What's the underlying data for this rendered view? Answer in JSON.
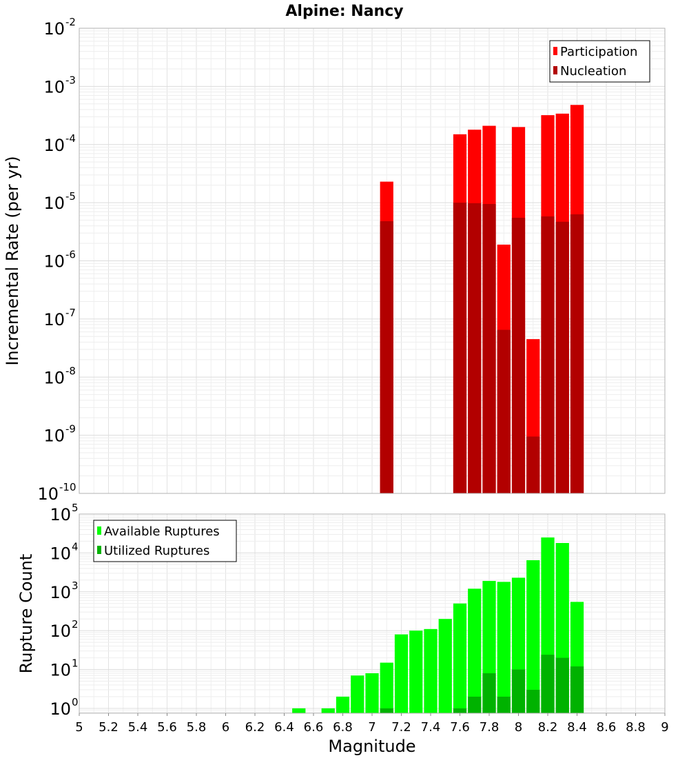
{
  "title": "Alpine: Nancy",
  "chart_data": [
    {
      "type": "bar",
      "title": "Alpine: Nancy",
      "xlabel": "",
      "ylabel": "Incremental Rate (per yr)",
      "yscale": "log",
      "ylim": [
        1e-10,
        0.01
      ],
      "xlim": [
        5,
        9
      ],
      "y_tick_exponents": [
        -10,
        -9,
        -8,
        -7,
        -6,
        -5,
        -4,
        -3,
        -2
      ],
      "bin_width": 0.1,
      "legend_position": "top-right",
      "grid": true,
      "x": [
        7.1,
        7.6,
        7.7,
        7.8,
        7.9,
        8.0,
        8.1,
        8.2,
        8.3,
        8.4
      ],
      "series": [
        {
          "name": "Participation",
          "color": "#ff0000",
          "values": [
            2.3e-05,
            0.00015,
            0.00018,
            0.00021,
            1.9e-06,
            0.0002,
            4.5e-08,
            0.00032,
            0.00034,
            0.00048
          ]
        },
        {
          "name": "Nucleation",
          "color": "#b20000",
          "values": [
            4.8e-06,
            1e-05,
            9.8e-06,
            9.5e-06,
            6.5e-08,
            5.5e-06,
            9.5e-10,
            5.8e-06,
            4.7e-06,
            6.3e-06
          ]
        }
      ]
    },
    {
      "type": "bar",
      "xlabel": "Magnitude",
      "ylabel": "Rupture Count",
      "yscale": "log",
      "ylim": [
        0.75,
        100000.0
      ],
      "xlim": [
        5,
        9
      ],
      "y_tick_exponents": [
        0,
        1,
        2,
        3,
        4,
        5
      ],
      "x_ticks": [
        "5",
        "5.2",
        "5.4",
        "5.6",
        "5.8",
        "6",
        "6.2",
        "6.4",
        "6.6",
        "6.8",
        "7",
        "7.2",
        "7.4",
        "7.6",
        "7.8",
        "8",
        "8.2",
        "8.4",
        "8.6",
        "8.8",
        "9"
      ],
      "bin_width": 0.1,
      "legend_position": "top-left",
      "grid": true,
      "series": [
        {
          "name": "Available Ruptures",
          "color": "#00ff00",
          "x": [
            6.5,
            6.7,
            6.8,
            6.9,
            7.0,
            7.1,
            7.2,
            7.3,
            7.4,
            7.5,
            7.6,
            7.7,
            7.8,
            7.9,
            8.0,
            8.1,
            8.2,
            8.3,
            8.4
          ],
          "values": [
            1,
            1,
            2,
            7,
            8,
            15,
            80,
            100,
            110,
            200,
            500,
            1200,
            1900,
            1800,
            2300,
            6500,
            25000,
            18000,
            550
          ]
        },
        {
          "name": "Utilized Ruptures",
          "color": "#00b200",
          "x": [
            7.1,
            7.6,
            7.7,
            7.8,
            7.9,
            8.0,
            8.1,
            8.2,
            8.3,
            8.4
          ],
          "values": [
            1,
            1,
            2,
            8,
            2,
            10,
            3,
            24,
            20,
            12
          ]
        }
      ]
    }
  ]
}
